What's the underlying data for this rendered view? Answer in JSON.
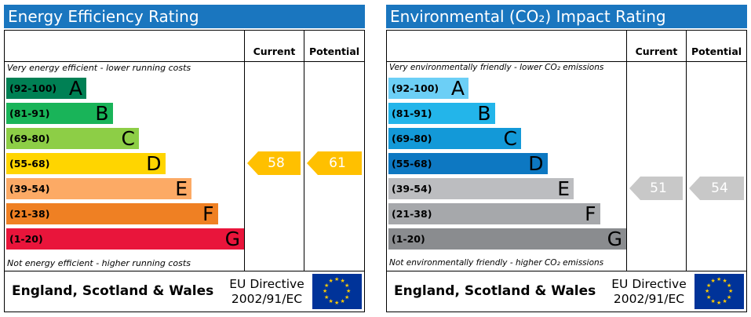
{
  "energy": {
    "title": "Energy Efficiency Rating",
    "title_bg": "#1a76bf",
    "col_current": "Current",
    "col_potential": "Potential",
    "top_note": "Very energy efficient - lower running costs",
    "bottom_note": "Not energy efficient - higher running costs",
    "bands": [
      {
        "range": "(92-100)",
        "letter": "A",
        "color": "#008054",
        "text_color": "#000000"
      },
      {
        "range": "(81-91)",
        "letter": "B",
        "color": "#19b459",
        "text_color": "#000000"
      },
      {
        "range": "(69-80)",
        "letter": "C",
        "color": "#8dce46",
        "text_color": "#000000"
      },
      {
        "range": "(55-68)",
        "letter": "D",
        "color": "#ffd500",
        "text_color": "#000000"
      },
      {
        "range": "(39-54)",
        "letter": "E",
        "color": "#fcaa65",
        "text_color": "#000000"
      },
      {
        "range": "(21-38)",
        "letter": "F",
        "color": "#ef8023",
        "text_color": "#000000"
      },
      {
        "range": "(1-20)",
        "letter": "G",
        "color": "#e9153b",
        "text_color": "#000000"
      }
    ],
    "current": {
      "value": "58",
      "color": "#ffc000"
    },
    "potential": {
      "value": "61",
      "color": "#ffc000"
    },
    "region": "England, Scotland & Wales",
    "directive_line1": "EU Directive",
    "directive_line2": "2002/91/EC"
  },
  "environment": {
    "title": "Environmental (CO₂) Impact Rating",
    "title_bg": "#1a76bf",
    "col_current": "Current",
    "col_potential": "Potential",
    "top_note": "Very environmentally friendly - lower CO₂ emissions",
    "bottom_note": "Not environmentally friendly - higher CO₂ emissions",
    "bands": [
      {
        "range": "(92-100)",
        "letter": "A",
        "color": "#6ccff6",
        "text_color": "#000000"
      },
      {
        "range": "(81-91)",
        "letter": "B",
        "color": "#23b5ea",
        "text_color": "#000000"
      },
      {
        "range": "(69-80)",
        "letter": "C",
        "color": "#1399d8",
        "text_color": "#000000"
      },
      {
        "range": "(55-68)",
        "letter": "D",
        "color": "#0d78c2",
        "text_color": "#000000"
      },
      {
        "range": "(39-54)",
        "letter": "E",
        "color": "#bcbdc0",
        "text_color": "#000000"
      },
      {
        "range": "(21-38)",
        "letter": "F",
        "color": "#a6a8ab",
        "text_color": "#000000"
      },
      {
        "range": "(1-20)",
        "letter": "G",
        "color": "#8a8c8f",
        "text_color": "#000000"
      }
    ],
    "current": {
      "value": "51",
      "color": "#c8c8c8"
    },
    "potential": {
      "value": "54",
      "color": "#c8c8c8"
    },
    "region": "England, Scotland & Wales",
    "directive_line1": "EU Directive",
    "directive_line2": "2002/91/EC"
  }
}
